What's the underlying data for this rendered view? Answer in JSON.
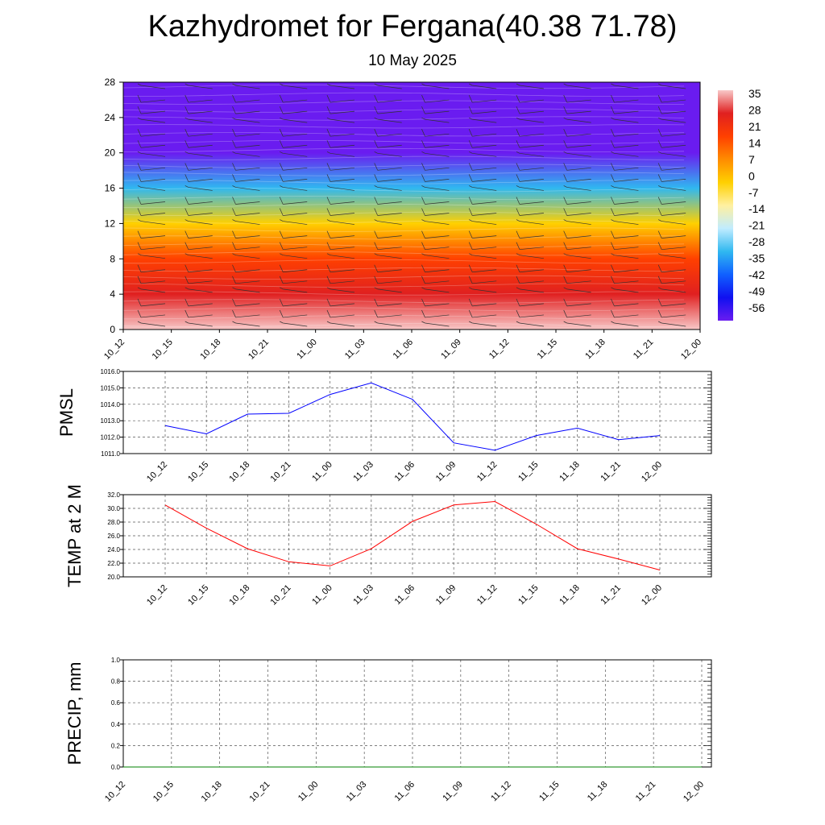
{
  "header": {
    "title": "Kazhydromet for Fergana(40.38 71.78)",
    "date": "10 May 2025"
  },
  "time_labels": [
    "10_12",
    "10_15",
    "10_18",
    "10_21",
    "11_00",
    "11_03",
    "11_06",
    "11_09",
    "11_12",
    "11_15",
    "11_18",
    "11_21",
    "12_00"
  ],
  "chart_data": [
    {
      "type": "heatmap",
      "title": "",
      "x": [
        "10_12",
        "10_15",
        "10_18",
        "10_21",
        "11_00",
        "11_03",
        "11_06",
        "11_09",
        "11_12",
        "11_15",
        "11_18",
        "11_21",
        "12_00"
      ],
      "ylim": [
        0,
        28
      ],
      "yticks": [
        0,
        4,
        8,
        12,
        16,
        20,
        24,
        28
      ],
      "colorbar": {
        "labels": [
          "35",
          "28",
          "21",
          "14",
          "7",
          "0",
          "-7",
          "-14",
          "-21",
          "-28",
          "-35",
          "-42",
          "-49",
          "-56"
        ],
        "palette": [
          "#f8c8c8",
          "#e02020",
          "#ff4000",
          "#ff8c00",
          "#ffd000",
          "#fff0a0",
          "#c0ecff",
          "#30b8f0",
          "#1060ff",
          "#1010f0",
          "#6a1cf0"
        ]
      },
      "profile": [
        {
          "level": 0,
          "value": 33
        },
        {
          "level": 4,
          "value": 28
        },
        {
          "level": 8,
          "value": 14
        },
        {
          "level": 12,
          "value": -7
        },
        {
          "level": 16,
          "value": -35
        },
        {
          "level": 20,
          "value": -56
        },
        {
          "level": 28,
          "value": -60
        }
      ]
    },
    {
      "type": "line",
      "ylabel": "PMSL",
      "ylim": [
        1011.0,
        1016.0
      ],
      "yticks": [
        "1011.0",
        "1012.0",
        "1013.0",
        "1014.0",
        "1015.0",
        "1016.0"
      ],
      "x": [
        "10_12",
        "10_15",
        "10_18",
        "10_21",
        "11_00",
        "11_03",
        "11_06",
        "11_09",
        "11_12",
        "11_15",
        "11_18",
        "11_21",
        "12_00"
      ],
      "series": [
        {
          "values": [
            1012.7,
            1012.2,
            1013.4,
            1013.45,
            1014.6,
            1015.3,
            1014.3,
            1011.65,
            1011.2,
            1012.1,
            1012.55,
            1011.85,
            1012.1
          ],
          "color": "#0000ff"
        }
      ]
    },
    {
      "type": "line",
      "ylabel": "TEMP at 2 M",
      "ylim": [
        20.0,
        32.0
      ],
      "yticks": [
        "20.0",
        "22.0",
        "24.0",
        "26.0",
        "28.0",
        "30.0",
        "32.0"
      ],
      "x": [
        "10_12",
        "10_15",
        "10_18",
        "10_21",
        "11_00",
        "11_03",
        "11_06",
        "11_09",
        "11_12",
        "11_15",
        "11_18",
        "11_21",
        "12_00"
      ],
      "series": [
        {
          "values": [
            30.5,
            27.1,
            24.1,
            22.2,
            21.6,
            24.1,
            28.1,
            30.5,
            31.0,
            27.7,
            24.1,
            22.6,
            21.0
          ],
          "color": "#ff0000"
        }
      ]
    },
    {
      "type": "line",
      "ylabel": "PRECIP, mm",
      "ylim": [
        0.0,
        1.0
      ],
      "yticks": [
        "0.0",
        "0.2",
        "0.4",
        "0.6",
        "0.8",
        "1.0"
      ],
      "x": [
        "10_12",
        "10_15",
        "10_18",
        "10_21",
        "11_00",
        "11_03",
        "11_06",
        "11_09",
        "11_12",
        "11_15",
        "11_18",
        "11_21",
        "12_00"
      ],
      "series": [
        {
          "values": [
            0,
            0,
            0,
            0,
            0,
            0,
            0,
            0,
            0,
            0,
            0,
            0,
            0
          ],
          "color": "#008000"
        }
      ]
    }
  ]
}
